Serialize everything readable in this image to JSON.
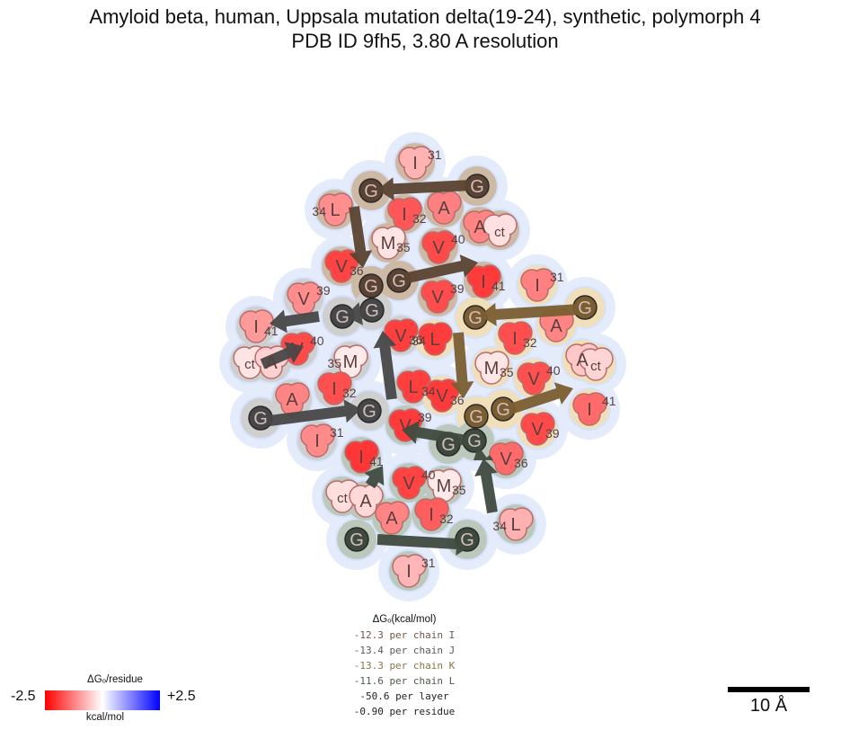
{
  "title_line1": "Amyloid beta, human, Uppsala mutation delta(19-24), synthetic, polymorph 4",
  "title_line2": "PDB ID 9fh5, 3.80 A resolution",
  "chains": [
    {
      "id": "I",
      "color": "#5a4332",
      "region": "#cdb9a4"
    },
    {
      "id": "J",
      "color": "#474747",
      "region": "#cfcfcf"
    },
    {
      "id": "K",
      "color": "#7a5e32",
      "region": "#f1dfb9"
    },
    {
      "id": "L",
      "color": "#3f4a3e",
      "region": "#bcc8bb"
    }
  ],
  "residues": [
    {
      "chain": "I",
      "letter": "I",
      "num": "31",
      "numpos": "sup",
      "color": "#ffb3b3"
    },
    {
      "chain": "I",
      "letter": "G",
      "num": "",
      "numpos": "",
      "color": "#5a4332"
    },
    {
      "chain": "I",
      "letter": "G",
      "num": "",
      "numpos": "",
      "color": "#5a4332"
    },
    {
      "chain": "I",
      "letter": "L",
      "num": "34",
      "numpos": "pre",
      "color": "#ff8f8f"
    },
    {
      "chain": "I",
      "letter": "I",
      "num": "32",
      "numpos": "sub",
      "color": "#ff5757"
    },
    {
      "chain": "I",
      "letter": "A",
      "num": "",
      "numpos": "",
      "color": "#ff8080"
    },
    {
      "chain": "I",
      "letter": "A",
      "num": "",
      "numpos": "",
      "color": "#ff8585"
    },
    {
      "chain": "I",
      "letter": "ct",
      "num": "",
      "numpos": "",
      "color": "#ffe0e0"
    },
    {
      "chain": "I",
      "letter": "M",
      "num": "35",
      "numpos": "sub",
      "color": "#ffe4e4"
    },
    {
      "chain": "I",
      "letter": "V",
      "num": "40",
      "numpos": "sup",
      "color": "#ff4a4a"
    },
    {
      "chain": "I",
      "letter": "V",
      "num": "36",
      "numpos": "sub",
      "color": "#ff4242"
    },
    {
      "chain": "I",
      "letter": "I",
      "num": "41",
      "numpos": "sub",
      "color": "#ff3a3a"
    },
    {
      "chain": "I",
      "letter": "G",
      "num": "",
      "numpos": "",
      "color": "#5a4332"
    },
    {
      "chain": "I",
      "letter": "G",
      "num": "",
      "numpos": "",
      "color": "#5a4332"
    },
    {
      "chain": "I",
      "letter": "V",
      "num": "39",
      "numpos": "sup",
      "color": "#ff4d4d"
    },
    {
      "chain": "J",
      "letter": "V",
      "num": "39",
      "numpos": "sup",
      "color": "#ff8d8d"
    },
    {
      "chain": "J",
      "letter": "I",
      "num": "41",
      "numpos": "sub",
      "color": "#ff9a9a"
    },
    {
      "chain": "J",
      "letter": "G",
      "num": "",
      "numpos": "",
      "color": "#474747"
    },
    {
      "chain": "J",
      "letter": "G",
      "num": "",
      "numpos": "",
      "color": "#474747"
    },
    {
      "chain": "J",
      "letter": "V",
      "num": "40",
      "numpos": "sup",
      "color": "#ff4a4a"
    },
    {
      "chain": "J",
      "letter": "ct",
      "num": "",
      "numpos": "",
      "color": "#ffe4e4"
    },
    {
      "chain": "J",
      "letter": "A",
      "num": "",
      "numpos": "",
      "color": "#ffd0d0"
    },
    {
      "chain": "J",
      "letter": "M",
      "num": "35",
      "numpos": "pre",
      "color": "#ffeaea"
    },
    {
      "chain": "J",
      "letter": "V",
      "num": "36",
      "numpos": "sub",
      "color": "#ff3e3e"
    },
    {
      "chain": "J",
      "letter": "L",
      "num": "34",
      "numpos": "sub",
      "color": "#ff3e3e"
    },
    {
      "chain": "J",
      "letter": "I",
      "num": "32",
      "numpos": "sub",
      "color": "#ff4f4f"
    },
    {
      "chain": "J",
      "letter": "A",
      "num": "",
      "numpos": "",
      "color": "#ff8585"
    },
    {
      "chain": "J",
      "letter": "G",
      "num": "",
      "numpos": "",
      "color": "#474747"
    },
    {
      "chain": "J",
      "letter": "G",
      "num": "",
      "numpos": "",
      "color": "#474747"
    },
    {
      "chain": "J",
      "letter": "I",
      "num": "31",
      "numpos": "sup",
      "color": "#ff8a8a"
    },
    {
      "chain": "K",
      "letter": "I",
      "num": "31",
      "numpos": "sup",
      "color": "#ff8080"
    },
    {
      "chain": "K",
      "letter": "G",
      "num": "",
      "numpos": "",
      "color": "#7a5e32"
    },
    {
      "chain": "K",
      "letter": "G",
      "num": "",
      "numpos": "",
      "color": "#7a5e32"
    },
    {
      "chain": "K",
      "letter": "L",
      "num": "34",
      "numpos": "pre",
      "color": "#ff3c3c"
    },
    {
      "chain": "K",
      "letter": "I",
      "num": "32",
      "numpos": "sub",
      "color": "#ff4e4e"
    },
    {
      "chain": "K",
      "letter": "A",
      "num": "",
      "numpos": "",
      "color": "#ff8585"
    },
    {
      "chain": "K",
      "letter": "A",
      "num": "",
      "numpos": "",
      "color": "#ffc8c8"
    },
    {
      "chain": "K",
      "letter": "ct",
      "num": "",
      "numpos": "",
      "color": "#ffd4d4"
    },
    {
      "chain": "K",
      "letter": "M",
      "num": "35",
      "numpos": "sub",
      "color": "#ffe6e6"
    },
    {
      "chain": "K",
      "letter": "V",
      "num": "40",
      "numpos": "sup",
      "color": "#ff5050"
    },
    {
      "chain": "K",
      "letter": "V",
      "num": "36",
      "numpos": "sub",
      "color": "#ff3a3a"
    },
    {
      "chain": "K",
      "letter": "I",
      "num": "41",
      "numpos": "sup",
      "color": "#ff6a6a"
    },
    {
      "chain": "K",
      "letter": "G",
      "num": "",
      "numpos": "",
      "color": "#7a5e32"
    },
    {
      "chain": "K",
      "letter": "G",
      "num": "",
      "numpos": "",
      "color": "#7a5e32"
    },
    {
      "chain": "K",
      "letter": "V",
      "num": "39",
      "numpos": "sub",
      "color": "#ff4a4a"
    },
    {
      "chain": "L",
      "letter": "V",
      "num": "39",
      "numpos": "sup",
      "color": "#ff3a3a"
    },
    {
      "chain": "L",
      "letter": "I",
      "num": "41",
      "numpos": "sub",
      "color": "#ff3636"
    },
    {
      "chain": "L",
      "letter": "G",
      "num": "",
      "numpos": "",
      "color": "#3f4a3e"
    },
    {
      "chain": "L",
      "letter": "G",
      "num": "",
      "numpos": "",
      "color": "#3f4a3e"
    },
    {
      "chain": "L",
      "letter": "V",
      "num": "40",
      "numpos": "sup",
      "color": "#ff4242"
    },
    {
      "chain": "L",
      "letter": "ct",
      "num": "",
      "numpos": "",
      "color": "#ffdede"
    },
    {
      "chain": "L",
      "letter": "A",
      "num": "",
      "numpos": "",
      "color": "#ffd8d8"
    },
    {
      "chain": "L",
      "letter": "M",
      "num": "35",
      "numpos": "sub",
      "color": "#ffe8e8"
    },
    {
      "chain": "L",
      "letter": "V",
      "num": "36",
      "numpos": "sub",
      "color": "#ff6b6b"
    },
    {
      "chain": "L",
      "letter": "L",
      "num": "34",
      "numpos": "pre",
      "color": "#ffb0b0"
    },
    {
      "chain": "L",
      "letter": "I",
      "num": "32",
      "numpos": "sub",
      "color": "#ff5e5e"
    },
    {
      "chain": "L",
      "letter": "A",
      "num": "",
      "numpos": "",
      "color": "#ff8585"
    },
    {
      "chain": "L",
      "letter": "G",
      "num": "",
      "numpos": "",
      "color": "#3f4a3e"
    },
    {
      "chain": "L",
      "letter": "G",
      "num": "",
      "numpos": "",
      "color": "#3f4a3e"
    },
    {
      "chain": "L",
      "letter": "I",
      "num": "31",
      "numpos": "sup",
      "color": "#ffb6b6"
    }
  ],
  "dg_legend": {
    "heading": "ΔGₒ(kcal/mol)",
    "rows": [
      {
        "text": "-12.3 per chain I",
        "color": "#6e5848"
      },
      {
        "text": "-13.4 per chain J",
        "color": "#5a5a5a"
      },
      {
        "text": "-13.3 per chain K",
        "color": "#8a7548"
      },
      {
        "text": "-11.6 per chain L",
        "color": "#4e5a4d"
      },
      {
        "text": "-50.6 per layer",
        "color": "#222222"
      },
      {
        "text": "-0.90 per residue",
        "color": "#222222"
      }
    ]
  },
  "colorbar": {
    "title": "ΔGₒ/residue",
    "min": "-2.5",
    "max": "+2.5",
    "unit": "kcal/mol",
    "colors": [
      "#ff0000",
      "#ffffff",
      "#0000ff"
    ]
  },
  "scalebar": {
    "label": "10 Å"
  }
}
